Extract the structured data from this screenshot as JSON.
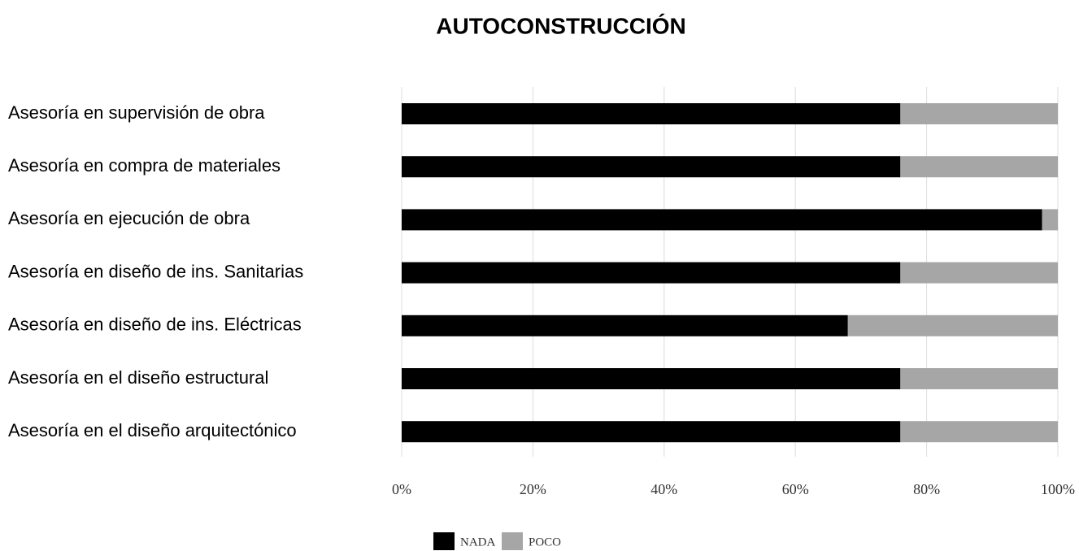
{
  "chart_data": {
    "type": "stacked_bar_horizontal",
    "title": "AUTOCONSTRUCCIÓN",
    "categories": [
      "Asesoría en supervisión de obra",
      "Asesoría en compra de materiales",
      "Asesoría en ejecución de obra",
      "Asesoría en diseño de ins. Sanitarias",
      "Asesoría en diseño de ins. Eléctricas",
      "Asesoría en el diseño estructural",
      "Asesoría en el diseño arquitectónico"
    ],
    "series": [
      {
        "name": "NADA",
        "color": "#000000",
        "values": [
          76,
          76,
          97.6,
          76,
          68,
          76,
          76
        ]
      },
      {
        "name": "POCO",
        "color": "#a6a6a6",
        "values": [
          24,
          24,
          2.4,
          24,
          32,
          24,
          24
        ]
      }
    ],
    "xlim": [
      0,
      100
    ],
    "xticks": [
      {
        "value": 0,
        "label": "0%"
      },
      {
        "value": 20,
        "label": "20%"
      },
      {
        "value": 40,
        "label": "40%"
      },
      {
        "value": 60,
        "label": "60%"
      },
      {
        "value": 80,
        "label": "80%"
      },
      {
        "value": 100,
        "label": "100%"
      }
    ],
    "grid": true,
    "legend": "bottom"
  }
}
